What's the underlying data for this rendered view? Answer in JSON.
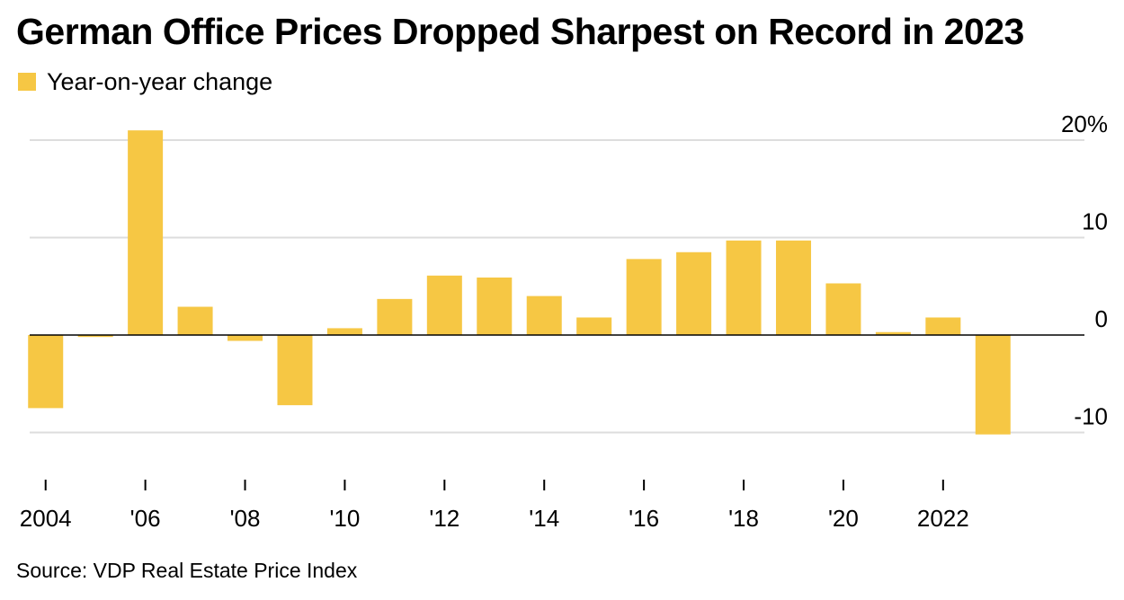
{
  "title": "German Office Prices Dropped Sharpest on Record in 2023",
  "source": "Source: VDP Real Estate Price Index",
  "colors": {
    "bar": "#F6C744",
    "grid": "#dddddd",
    "zero": "#000000"
  },
  "chart_data": {
    "type": "bar",
    "title": "German Office Prices Dropped Sharpest on Record in 2023",
    "legend": {
      "position": "top-left",
      "entries": [
        "Year-on-year change"
      ]
    },
    "xlabel": "",
    "ylabel": "",
    "ylim": [
      -12,
      22
    ],
    "grid": true,
    "y_ticks": [
      {
        "value": 20,
        "label": "20%"
      },
      {
        "value": 10,
        "label": "10"
      },
      {
        "value": 0,
        "label": "0"
      },
      {
        "value": -10,
        "label": "-10"
      }
    ],
    "x_tick_labels": [
      {
        "category": "2004",
        "label": "2004"
      },
      {
        "category": "2006",
        "label": "'06"
      },
      {
        "category": "2008",
        "label": "'08"
      },
      {
        "category": "2010",
        "label": "'10"
      },
      {
        "category": "2012",
        "label": "'12"
      },
      {
        "category": "2014",
        "label": "'14"
      },
      {
        "category": "2016",
        "label": "'16"
      },
      {
        "category": "2018",
        "label": "'18"
      },
      {
        "category": "2020",
        "label": "'20"
      },
      {
        "category": "2022",
        "label": "2022"
      }
    ],
    "categories": [
      "2004",
      "2005",
      "2006",
      "2007",
      "2008",
      "2009",
      "2010",
      "2011",
      "2012",
      "2013",
      "2014",
      "2015",
      "2016",
      "2017",
      "2018",
      "2019",
      "2020",
      "2021",
      "2022",
      "2023"
    ],
    "series": [
      {
        "name": "Year-on-year change",
        "values": [
          -7.5,
          -0.2,
          21.0,
          2.9,
          -0.6,
          -7.2,
          0.7,
          3.7,
          6.1,
          5.9,
          4.0,
          1.8,
          7.8,
          8.5,
          9.7,
          9.7,
          5.3,
          0.3,
          1.8,
          -10.2
        ]
      }
    ]
  }
}
